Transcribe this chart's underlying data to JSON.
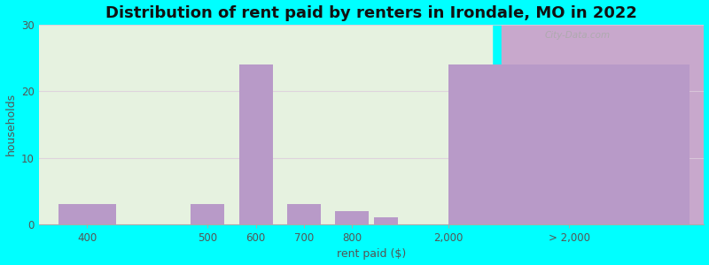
{
  "title": "Distribution of rent paid by renters in Irondale, MO in 2022",
  "xlabel": "rent paid ($)",
  "ylabel": "households",
  "background_color": "#00FFFF",
  "bar_color": "#b89ac8",
  "ylim": [
    0,
    30
  ],
  "yticks": [
    0,
    10,
    20,
    30
  ],
  "title_fontsize": 13,
  "label_fontsize": 9,
  "tick_fontsize": 8.5,
  "watermark": "City-Data.com",
  "grid_color": "#ddccdd",
  "left_bg": "#e6f2e0",
  "right_bg": "#c8a8cc",
  "bar_heights": [
    3,
    3,
    24,
    3,
    2,
    1,
    24
  ],
  "bar_positions": [
    1.0,
    3.5,
    4.5,
    5.5,
    6.5,
    7.2,
    11.0
  ],
  "bar_widths": [
    1.2,
    0.7,
    0.7,
    0.7,
    0.7,
    0.5,
    5.0
  ],
  "xtick_positions": [
    1.0,
    3.5,
    4.5,
    5.5,
    6.5,
    8.5,
    11.0
  ],
  "xtick_labels": [
    "400",
    "500",
    "600",
    "700",
    "800",
    "2,000",
    "> 2,000"
  ],
  "xlim": [
    0.0,
    13.8
  ],
  "left_span_end": 9.4,
  "right_span_start": 9.6
}
